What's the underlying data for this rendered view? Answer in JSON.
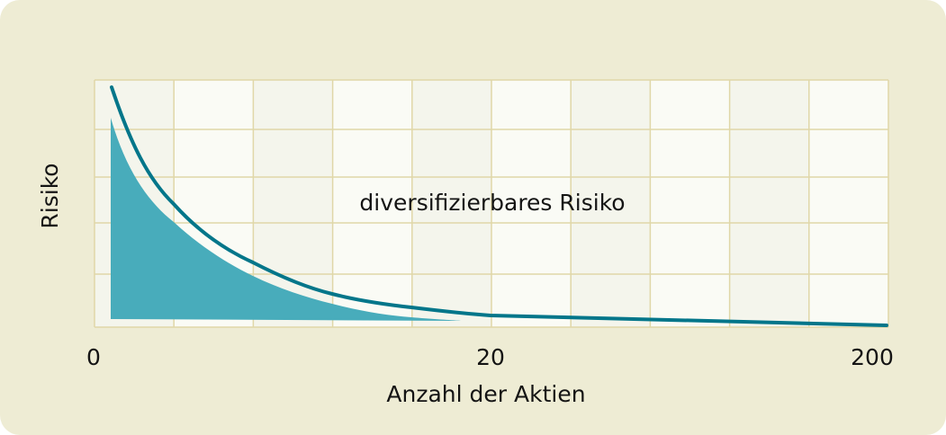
{
  "chart_data": {
    "type": "area",
    "title": "",
    "xlabel": "Anzahl der Aktien",
    "ylabel": "Risiko",
    "x_ticks": [
      "0",
      "20",
      "200"
    ],
    "y_ticks": [],
    "annotation": "diversifizierbares Risiko",
    "grid": true,
    "series": [
      {
        "kind": "line",
        "color": "#03768A"
      },
      {
        "kind": "filled-area",
        "color": "#48ACBB"
      }
    ],
    "colors": {
      "background": "#EEECD4",
      "grid": "#E0D7A8",
      "cell_light": "#FAFBF5",
      "cell_dark": "#F4F5EC"
    }
  }
}
